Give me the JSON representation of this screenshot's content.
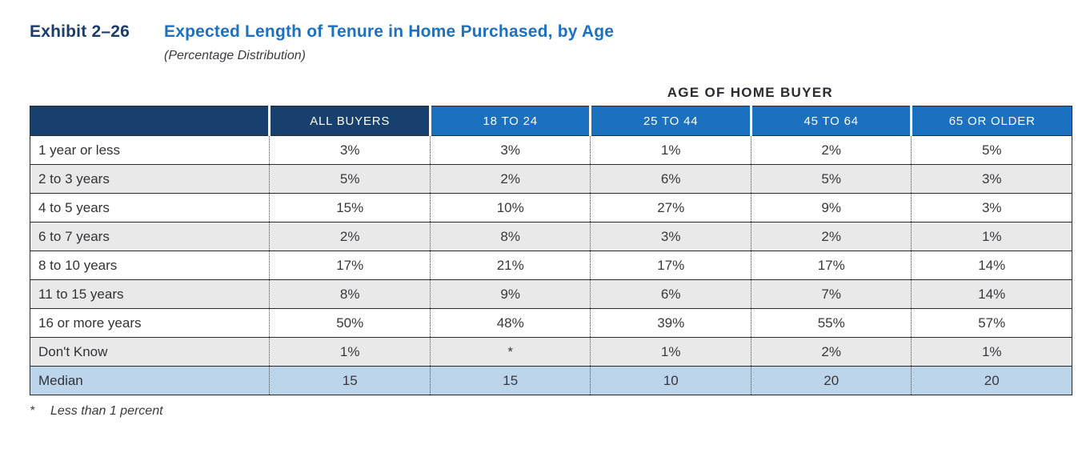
{
  "exhibit": {
    "number": "Exhibit 2–26",
    "title": "Expected Length of Tenure in Home Purchased, by Age",
    "subtitle": "(Percentage Distribution)"
  },
  "table": {
    "group_header": "AGE OF HOME BUYER",
    "columns": [
      "",
      "ALL BUYERS",
      "18 TO 24",
      "25 TO 44",
      "45 TO 64",
      "65 OR OLDER"
    ],
    "rows": [
      {
        "label": "1 year or less",
        "values": [
          "3%",
          "3%",
          "1%",
          "2%",
          "5%"
        ]
      },
      {
        "label": "2 to 3 years",
        "values": [
          "5%",
          "2%",
          "6%",
          "5%",
          "3%"
        ]
      },
      {
        "label": "4 to 5 years",
        "values": [
          "15%",
          "10%",
          "27%",
          "9%",
          "3%"
        ]
      },
      {
        "label": "6 to 7 years",
        "values": [
          "2%",
          "8%",
          "3%",
          "2%",
          "1%"
        ]
      },
      {
        "label": "8 to 10 years",
        "values": [
          "17%",
          "21%",
          "17%",
          "17%",
          "14%"
        ]
      },
      {
        "label": "11 to 15 years",
        "values": [
          "8%",
          "9%",
          "6%",
          "7%",
          "14%"
        ]
      },
      {
        "label": "16 or more years",
        "values": [
          "50%",
          "48%",
          "39%",
          "55%",
          "57%"
        ]
      },
      {
        "label": "Don't Know",
        "values": [
          "1%",
          "*",
          "1%",
          "2%",
          "1%"
        ]
      },
      {
        "label": "Median",
        "values": [
          "15",
          "15",
          "10",
          "20",
          "20"
        ],
        "highlight": true
      }
    ],
    "footnote": {
      "marker": "*",
      "text": "Less than 1 percent"
    }
  },
  "colors": {
    "header_dark_navy": "#17406e",
    "header_blue": "#1b70bf",
    "title_navy": "#1b3d6e",
    "title_blue": "#1e70c1",
    "median_row_blue": "#bdd5ea",
    "alt_row_gray": "#e9e9ea"
  }
}
